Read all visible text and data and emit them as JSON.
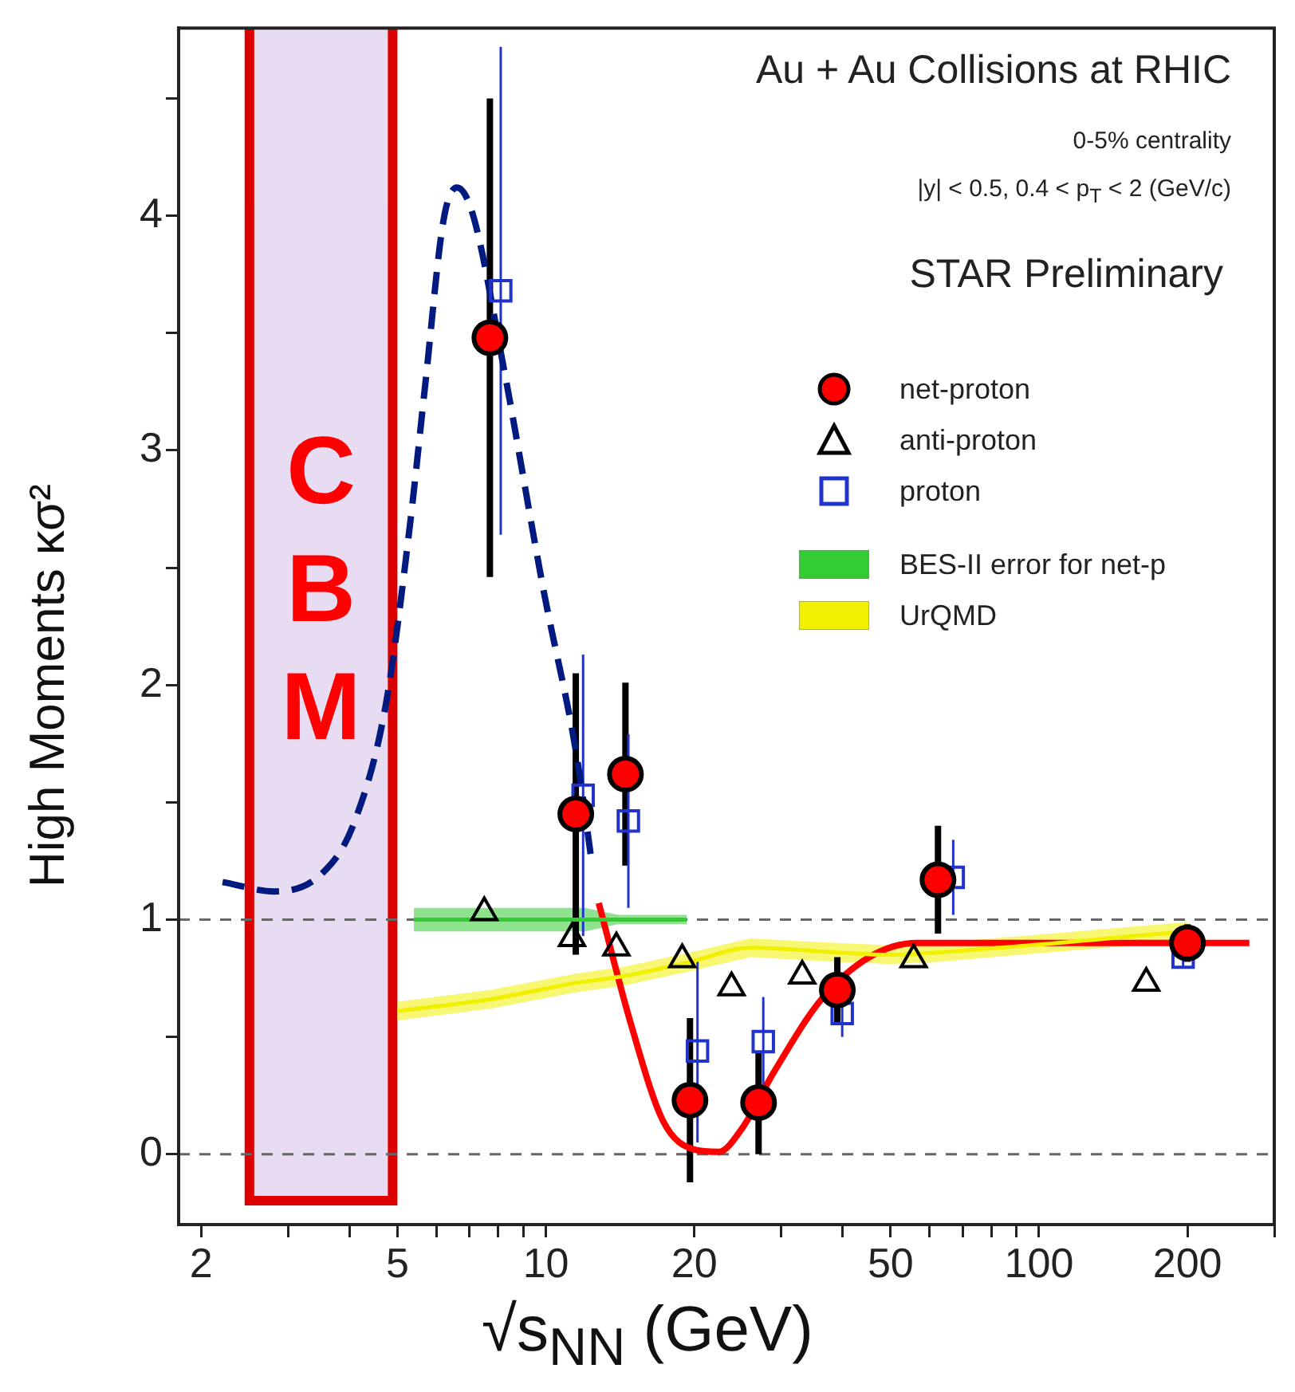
{
  "chart_data": {
    "type": "scatter",
    "xlabel": "√s$_{NN}$ (GeV)",
    "ylabel": "High Moments κσ²",
    "log": "x",
    "xlim": [
      1.8,
      300
    ],
    "xticks": [
      2,
      {
        "value": 3,
        "label": null
      },
      {
        "value": 4,
        "label": null
      },
      5,
      {
        "value": 6,
        "label": null
      },
      {
        "value": 7,
        "label": null
      },
      {
        "value": 8,
        "label": null
      },
      {
        "value": 9,
        "label": null
      },
      10,
      20,
      {
        "value": 30,
        "label": null
      },
      {
        "value": 40,
        "label": null
      },
      50,
      {
        "value": 60,
        "label": null
      },
      {
        "value": 70,
        "label": null
      },
      {
        "value": 80,
        "label": null
      },
      {
        "value": 90,
        "label": null
      },
      100,
      200,
      {
        "value": 300,
        "label": null
      }
    ],
    "ylim": [
      -0.3,
      4.8
    ],
    "yticks": [
      0,
      {
        "value": 0.5,
        "label": null
      },
      1,
      {
        "value": 1.5,
        "label": null
      },
      2,
      {
        "value": 2.5,
        "label": null
      },
      3,
      {
        "value": 3.5,
        "label": null
      },
      4,
      {
        "value": 4.5,
        "label": null
      }
    ],
    "grid": false,
    "legend": "top right",
    "annotations": [
      "Au + Au Collisions at RHIC",
      "0-5% centrality",
      "|y| < 0.5, 0.4 < p$_{T}$ < 2 (GeV/c)",
      "STAR Preliminary"
    ],
    "ref_lines": [
      {
        "axis": "y",
        "value": 0,
        "label": null,
        "color": "#666666",
        "line_style": "dashed"
      },
      {
        "axis": "y",
        "value": 1,
        "label": null,
        "color": "#666666",
        "line_style": "dashed"
      }
    ],
    "bands": [
      {
        "axis": "x",
        "from": 2.45,
        "to": 5,
        "label": "CBM",
        "color": "#e8dcf2"
      }
    ],
    "series": [
      {
        "name": "net-proton",
        "type": "scatter",
        "marker": "circle",
        "color": "#ff0000",
        "x": [
          7.7,
          11.5,
          14.5,
          19.6,
          27,
          39,
          62.4,
          200
        ],
        "values": [
          3.48,
          1.45,
          1.62,
          0.23,
          0.22,
          0.7,
          1.17,
          0.9
        ],
        "errors": [
          1.02,
          0.6,
          0.39,
          0.35,
          0.22,
          0.14,
          0.23,
          0.08
        ]
      },
      {
        "name": "anti-proton",
        "type": "scatter",
        "marker": "triangle",
        "color": "#000000",
        "x": [
          7.5,
          11.3,
          13.9,
          18.9,
          23.8,
          33.1,
          55.7,
          165
        ],
        "values": [
          1.03,
          0.92,
          0.88,
          0.83,
          0.71,
          0.76,
          0.83,
          0.73
        ]
      },
      {
        "name": "proton",
        "type": "scatter",
        "marker": "square",
        "color": "#2233cc",
        "x": [
          8.1,
          11.9,
          14.7,
          20.3,
          27.6,
          39.9,
          67,
          196
        ],
        "values": [
          3.68,
          1.53,
          1.42,
          0.44,
          0.48,
          0.6,
          1.18,
          0.84
        ],
        "errors": [
          1.04,
          0.6,
          0.37,
          0.39,
          0.19,
          0.1,
          0.16,
          0.04
        ]
      },
      {
        "name": "BES-II error for net-p",
        "type": "line",
        "color": "#33cc33",
        "x": [
          5.4,
          12,
          14,
          19.3
        ],
        "values": [
          1,
          1,
          1,
          1
        ],
        "lower": [
          0.95,
          0.95,
          0.98,
          0.98
        ],
        "upper": [
          1.05,
          1.05,
          1.02,
          1.02
        ]
      },
      {
        "name": "UrQMD",
        "type": "line",
        "color": "#f0f000",
        "x": [
          5,
          7.7,
          11.5,
          14.5,
          19.6,
          26,
          39,
          50,
          62.4,
          200
        ],
        "values": [
          0.61,
          0.66,
          0.73,
          0.76,
          0.82,
          0.88,
          0.86,
          0.85,
          0.86,
          0.95
        ],
        "lower": [
          0.57,
          0.62,
          0.69,
          0.72,
          0.78,
          0.84,
          0.82,
          0.81,
          0.82,
          0.91
        ],
        "upper": [
          0.65,
          0.7,
          0.77,
          0.8,
          0.86,
          0.92,
          0.9,
          0.89,
          0.9,
          0.99
        ]
      },
      {
        "type": "line",
        "color": "#ff0000",
        "line_style": "solid",
        "x": [
          12.8,
          14.9,
          17.3,
          20,
          22.4,
          25,
          29,
          36.2,
          45.3,
          56.6,
          95,
          185,
          267
        ],
        "values": [
          1.07,
          0.55,
          0.14,
          0.02,
          0.01,
          0.11,
          0.35,
          0.66,
          0.84,
          0.9,
          0.9,
          0.9,
          0.9
        ]
      },
      {
        "type": "line",
        "color": "#001a80",
        "line_style": "dashed",
        "x": [
          2.21,
          2.82,
          3.53,
          4.08,
          4.74,
          5.3,
          5.7,
          6.2,
          6.6,
          7.1,
          8.2,
          9.9,
          11.5,
          12.4
        ],
        "values": [
          1.16,
          1.12,
          1.2,
          1.41,
          1.92,
          2.68,
          3.29,
          3.98,
          4.12,
          4.01,
          3.36,
          2.4,
          1.72,
          1.24
        ]
      }
    ]
  }
}
